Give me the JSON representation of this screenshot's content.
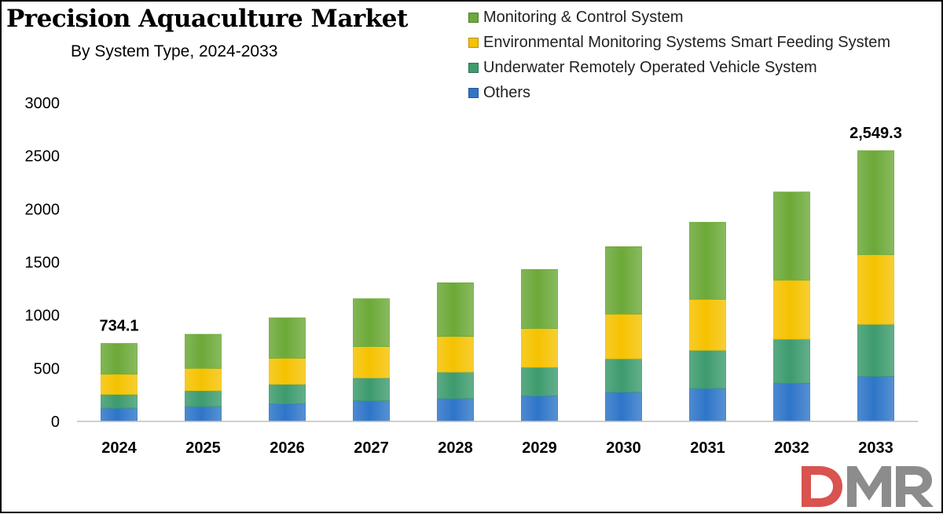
{
  "chart_data": {
    "type": "bar",
    "stacked": true,
    "title": "Precision Aquaculture Market",
    "subtitle": "By System Type, 2024-2033",
    "categories": [
      "2024",
      "2025",
      "2026",
      "2027",
      "2028",
      "2029",
      "2030",
      "2031",
      "2032",
      "2033"
    ],
    "series": [
      {
        "name": "Others",
        "color": "#2e75c8",
        "values": [
          125,
          140,
          165,
          195,
          215,
          240,
          275,
          310,
          360,
          425
        ]
      },
      {
        "name": "Underwater Remotely Operated Vehicle System",
        "color": "#3d9b6e",
        "values": [
          130,
          150,
          185,
          215,
          250,
          270,
          315,
          360,
          415,
          490
        ]
      },
      {
        "name": "Environmental Monitoring Systems Smart Feeding System",
        "color": "#f5c200",
        "values": [
          190,
          210,
          245,
          295,
          335,
          365,
          420,
          480,
          555,
          655
        ]
      },
      {
        "name": "Monitoring & Control System",
        "color": "#6ca938",
        "values": [
          289.1,
          320,
          380,
          450,
          505,
          555,
          635,
          725,
          830,
          979.3
        ]
      }
    ],
    "data_labels": [
      {
        "category": "2024",
        "text": "734.1"
      },
      {
        "category": "2033",
        "text": "2,549.3"
      }
    ],
    "legend_order": [
      "Monitoring & Control System",
      "Environmental Monitoring Systems Smart Feeding System",
      "Underwater Remotely Operated Vehicle System",
      "Others"
    ],
    "ylim": [
      0,
      3000
    ],
    "yticks": [
      0,
      500,
      1000,
      1500,
      2000,
      2500,
      3000
    ],
    "xlabel": "",
    "ylabel": "",
    "grid": false,
    "legend_position": "top-right"
  },
  "logo": {
    "text": "DMR",
    "colors": {
      "D": "#d9534f",
      "M": "#888888",
      "R": "#888888"
    }
  }
}
